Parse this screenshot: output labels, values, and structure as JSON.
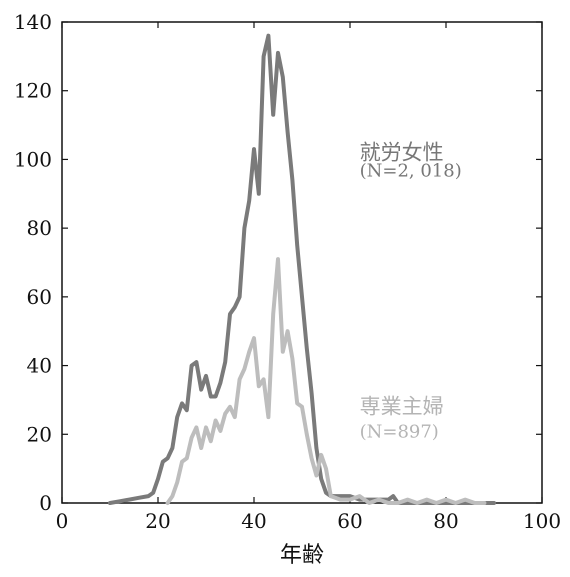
{
  "chart_data": {
    "type": "line",
    "title": "",
    "xlabel": "年齢",
    "ylabel": "",
    "xlim": [
      0,
      100
    ],
    "ylim": [
      0,
      140
    ],
    "xticks": [
      0,
      20,
      40,
      60,
      80,
      100
    ],
    "yticks": [
      0,
      20,
      40,
      60,
      80,
      100,
      120,
      140
    ],
    "grid": false,
    "legend": "inline-labels",
    "series": [
      {
        "name": "就労女性",
        "note": "(N=2, 018)",
        "color": "#7a7a7a",
        "x": [
          10,
          12,
          14,
          16,
          18,
          19,
          20,
          21,
          22,
          23,
          24,
          25,
          26,
          27,
          28,
          29,
          30,
          31,
          32,
          33,
          34,
          35,
          36,
          37,
          38,
          39,
          40,
          41,
          42,
          43,
          44,
          45,
          46,
          47,
          48,
          49,
          50,
          51,
          52,
          53,
          54,
          55,
          56,
          58,
          60,
          62,
          64,
          66,
          68,
          69,
          70,
          72,
          74,
          76,
          78,
          80,
          82,
          84,
          86,
          88,
          90
        ],
        "y": [
          0,
          0.5,
          1,
          1.5,
          2,
          3,
          7,
          12,
          13,
          16,
          25,
          29,
          27,
          40,
          41,
          33,
          37,
          31,
          31,
          35,
          41,
          55,
          57,
          60,
          80,
          88,
          103,
          90,
          130,
          136,
          113,
          131,
          124,
          108,
          94,
          75,
          60,
          45,
          32,
          16,
          7,
          3,
          2,
          2,
          2,
          1,
          1,
          1,
          1,
          2,
          0,
          0,
          0,
          0,
          0,
          0,
          0,
          0,
          0,
          0,
          0
        ]
      },
      {
        "name": "専業主婦",
        "note": "(N=897)",
        "color": "#bdbdbd",
        "x": [
          22,
          23,
          24,
          25,
          26,
          27,
          28,
          29,
          30,
          31,
          32,
          33,
          34,
          35,
          36,
          37,
          38,
          39,
          40,
          41,
          42,
          43,
          44,
          45,
          46,
          47,
          48,
          49,
          50,
          51,
          52,
          53,
          54,
          55,
          56,
          58,
          60,
          62,
          64,
          66,
          68,
          70,
          72,
          74,
          76,
          78,
          80,
          82,
          84,
          86,
          88
        ],
        "y": [
          0,
          2,
          6,
          12,
          13,
          19,
          22,
          16,
          22,
          18,
          24,
          21,
          26,
          28,
          25,
          36,
          39,
          44,
          48,
          34,
          36,
          25,
          55,
          71,
          44,
          50,
          42,
          29,
          28,
          20,
          13,
          8,
          14,
          10,
          2,
          1,
          1,
          2,
          0,
          1,
          0,
          0,
          1,
          0,
          1,
          0,
          1,
          0,
          1,
          0,
          0
        ]
      }
    ],
    "annotations": [
      {
        "text": "就労女性",
        "x": 62,
        "y": 100
      },
      {
        "text": "(N=2, 018)",
        "x": 62,
        "y": 95
      },
      {
        "text": "専業主婦",
        "x": 62,
        "y": 26
      },
      {
        "text": "(N=897)",
        "x": 62,
        "y": 19
      }
    ]
  }
}
